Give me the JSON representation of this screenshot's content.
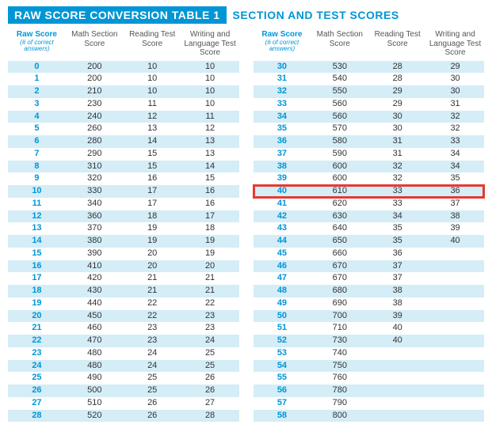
{
  "title": {
    "left": "RAW SCORE CONVERSION TABLE 1",
    "right": "SECTION AND TEST SCORES"
  },
  "headers": {
    "raw": "Raw Score",
    "raw_sub": "(# of correct answers)",
    "math": "Math Section Score",
    "read": "Reading Test Score",
    "write": "Writing and Language Test Score"
  },
  "colors": {
    "accent": "#0096d6",
    "band": "#d4edf7",
    "text": "#333333",
    "header_gray": "#555555",
    "highlight": "#e53935",
    "background": "#ffffff"
  },
  "table": {
    "type": "table",
    "columns": [
      "raw",
      "math",
      "read",
      "write"
    ],
    "highlight_raw": 40,
    "left_rows": [
      {
        "raw": 0,
        "math": 200,
        "read": 10,
        "write": 10
      },
      {
        "raw": 1,
        "math": 200,
        "read": 10,
        "write": 10
      },
      {
        "raw": 2,
        "math": 210,
        "read": 10,
        "write": 10
      },
      {
        "raw": 3,
        "math": 230,
        "read": 11,
        "write": 10
      },
      {
        "raw": 4,
        "math": 240,
        "read": 12,
        "write": 11
      },
      {
        "raw": 5,
        "math": 260,
        "read": 13,
        "write": 12
      },
      {
        "raw": 6,
        "math": 280,
        "read": 14,
        "write": 13
      },
      {
        "raw": 7,
        "math": 290,
        "read": 15,
        "write": 13
      },
      {
        "raw": 8,
        "math": 310,
        "read": 15,
        "write": 14
      },
      {
        "raw": 9,
        "math": 320,
        "read": 16,
        "write": 15
      },
      {
        "raw": 10,
        "math": 330,
        "read": 17,
        "write": 16
      },
      {
        "raw": 11,
        "math": 340,
        "read": 17,
        "write": 16
      },
      {
        "raw": 12,
        "math": 360,
        "read": 18,
        "write": 17
      },
      {
        "raw": 13,
        "math": 370,
        "read": 19,
        "write": 18
      },
      {
        "raw": 14,
        "math": 380,
        "read": 19,
        "write": 19
      },
      {
        "raw": 15,
        "math": 390,
        "read": 20,
        "write": 19
      },
      {
        "raw": 16,
        "math": 410,
        "read": 20,
        "write": 20
      },
      {
        "raw": 17,
        "math": 420,
        "read": 21,
        "write": 21
      },
      {
        "raw": 18,
        "math": 430,
        "read": 21,
        "write": 21
      },
      {
        "raw": 19,
        "math": 440,
        "read": 22,
        "write": 22
      },
      {
        "raw": 20,
        "math": 450,
        "read": 22,
        "write": 23
      },
      {
        "raw": 21,
        "math": 460,
        "read": 23,
        "write": 23
      },
      {
        "raw": 22,
        "math": 470,
        "read": 23,
        "write": 24
      },
      {
        "raw": 23,
        "math": 480,
        "read": 24,
        "write": 25
      },
      {
        "raw": 24,
        "math": 480,
        "read": 24,
        "write": 25
      },
      {
        "raw": 25,
        "math": 490,
        "read": 25,
        "write": 26
      },
      {
        "raw": 26,
        "math": 500,
        "read": 25,
        "write": 26
      },
      {
        "raw": 27,
        "math": 510,
        "read": 26,
        "write": 27
      },
      {
        "raw": 28,
        "math": 520,
        "read": 26,
        "write": 28
      }
    ],
    "right_rows": [
      {
        "raw": 30,
        "math": 530,
        "read": 28,
        "write": 29
      },
      {
        "raw": 31,
        "math": 540,
        "read": 28,
        "write": 30
      },
      {
        "raw": 32,
        "math": 550,
        "read": 29,
        "write": 30
      },
      {
        "raw": 33,
        "math": 560,
        "read": 29,
        "write": 31
      },
      {
        "raw": 34,
        "math": 560,
        "read": 30,
        "write": 32
      },
      {
        "raw": 35,
        "math": 570,
        "read": 30,
        "write": 32
      },
      {
        "raw": 36,
        "math": 580,
        "read": 31,
        "write": 33
      },
      {
        "raw": 37,
        "math": 590,
        "read": 31,
        "write": 34
      },
      {
        "raw": 38,
        "math": 600,
        "read": 32,
        "write": 34
      },
      {
        "raw": 39,
        "math": 600,
        "read": 32,
        "write": 35
      },
      {
        "raw": 40,
        "math": 610,
        "read": 33,
        "write": 36
      },
      {
        "raw": 41,
        "math": 620,
        "read": 33,
        "write": 37
      },
      {
        "raw": 42,
        "math": 630,
        "read": 34,
        "write": 38
      },
      {
        "raw": 43,
        "math": 640,
        "read": 35,
        "write": 39
      },
      {
        "raw": 44,
        "math": 650,
        "read": 35,
        "write": 40
      },
      {
        "raw": 45,
        "math": 660,
        "read": 36,
        "write": ""
      },
      {
        "raw": 46,
        "math": 670,
        "read": 37,
        "write": ""
      },
      {
        "raw": 47,
        "math": 670,
        "read": 37,
        "write": ""
      },
      {
        "raw": 48,
        "math": 680,
        "read": 38,
        "write": ""
      },
      {
        "raw": 49,
        "math": 690,
        "read": 38,
        "write": ""
      },
      {
        "raw": 50,
        "math": 700,
        "read": 39,
        "write": ""
      },
      {
        "raw": 51,
        "math": 710,
        "read": 40,
        "write": ""
      },
      {
        "raw": 52,
        "math": 730,
        "read": 40,
        "write": ""
      },
      {
        "raw": 53,
        "math": 740,
        "read": "",
        "write": ""
      },
      {
        "raw": 54,
        "math": 750,
        "read": "",
        "write": ""
      },
      {
        "raw": 55,
        "math": 760,
        "read": "",
        "write": ""
      },
      {
        "raw": 56,
        "math": 780,
        "read": "",
        "write": ""
      },
      {
        "raw": 57,
        "math": 790,
        "read": "",
        "write": ""
      },
      {
        "raw": 58,
        "math": 800,
        "read": "",
        "write": ""
      }
    ]
  }
}
